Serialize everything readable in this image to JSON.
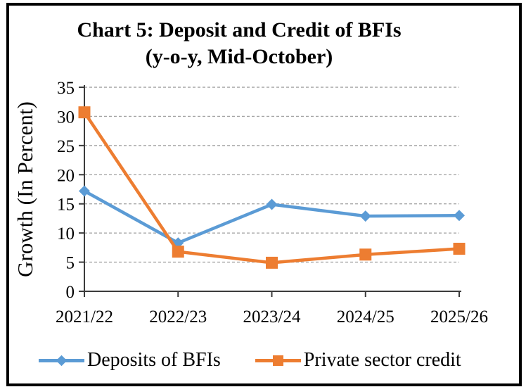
{
  "frame": {
    "border_color": "#000000"
  },
  "chart_data": {
    "type": "line",
    "title": "Chart 5:  Deposit and Credit of BFIs",
    "subtitle": "(y-o-y, Mid-October)",
    "ylabel": "Growth (In Percent)",
    "xlabel": "",
    "categories": [
      "2021/22",
      "2022/23",
      "2023/24",
      "2024/25",
      "2025/26"
    ],
    "series": [
      {
        "name": "Deposits of BFIs",
        "color": "#5B9BD5",
        "marker": "diamond",
        "values": [
          17.2,
          8.3,
          14.9,
          12.9,
          13.0
        ]
      },
      {
        "name": "Private sector credit",
        "color": "#ED7D31",
        "marker": "square",
        "values": [
          30.7,
          6.8,
          4.9,
          6.3,
          7.3
        ]
      }
    ],
    "ylim": [
      0,
      35
    ],
    "ytick_step": 5,
    "yticks": [
      0,
      5,
      10,
      15,
      20,
      25,
      30,
      35
    ],
    "grid": {
      "horizontal": true,
      "style": "dashed",
      "color": "#A6A6A6"
    },
    "axis_color": "#3B3B3B",
    "legend_position": "bottom"
  }
}
